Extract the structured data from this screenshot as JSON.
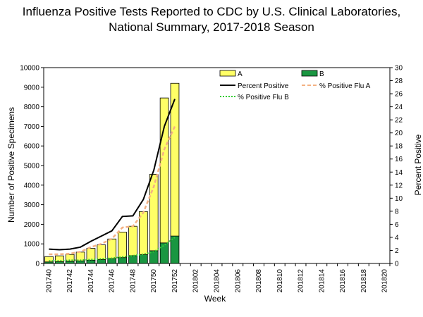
{
  "chart_data": {
    "type": "bar",
    "title_line1": "Influenza Positive Tests Reported to CDC by U.S. Clinical Laboratories,",
    "title_line2": "National Summary, 2017-2018 Season",
    "xlabel": "Week",
    "ylabel": "Number of Positive Specimens",
    "y2label": "Percent Positive",
    "ylim": [
      0,
      10000
    ],
    "y2lim": [
      0,
      30
    ],
    "yticks": [
      0,
      1000,
      2000,
      3000,
      4000,
      5000,
      6000,
      7000,
      8000,
      9000,
      10000
    ],
    "y2ticks": [
      0,
      2,
      4,
      6,
      8,
      10,
      12,
      14,
      16,
      18,
      20,
      22,
      24,
      26,
      28,
      30
    ],
    "weeks": [
      "201740",
      "201741",
      "201742",
      "201743",
      "201744",
      "201745",
      "201746",
      "201747",
      "201748",
      "201749",
      "201750",
      "201751",
      "201752",
      "201801",
      "201802",
      "201803",
      "201804",
      "201805",
      "201806",
      "201807",
      "201808",
      "201809",
      "201810",
      "201811",
      "201812",
      "201813",
      "201814",
      "201815",
      "201816",
      "201817",
      "201818",
      "201819",
      "201820"
    ],
    "x_tick_labels": [
      "201740",
      "201742",
      "201744",
      "201746",
      "201748",
      "201750",
      "201752",
      "201802",
      "201804",
      "201806",
      "201808",
      "201810",
      "201812",
      "201814",
      "201816",
      "201818",
      "201820"
    ],
    "series": [
      {
        "name": "A",
        "kind": "stacked-bar",
        "color": "#ffff66",
        "values": [
          270,
          300,
          350,
          450,
          600,
          750,
          1000,
          1300,
          1500,
          2200,
          3900,
          7400,
          7800
        ]
      },
      {
        "name": "B",
        "kind": "stacked-bar",
        "color": "#1a9641",
        "values": [
          80,
          90,
          110,
          130,
          170,
          200,
          250,
          300,
          400,
          450,
          650,
          1050,
          1400
        ]
      },
      {
        "name": "Percent Positive",
        "kind": "line",
        "color": "#000000",
        "values": [
          2.2,
          2.1,
          2.2,
          2.5,
          3.4,
          4.2,
          5.0,
          7.2,
          7.3,
          9.8,
          14.3,
          21.0,
          25.2
        ]
      },
      {
        "name": "% Positive Flu A",
        "kind": "line",
        "color": "#f4b183",
        "values": [
          1.4,
          1.4,
          1.5,
          1.8,
          2.5,
          3.0,
          3.8,
          5.5,
          5.7,
          7.8,
          11.8,
          17.5,
          21.0
        ]
      },
      {
        "name": "% Positive Flu B",
        "kind": "line",
        "color": "#33cc33",
        "values": [
          0.4,
          0.4,
          0.5,
          0.5,
          0.6,
          0.7,
          0.8,
          1.0,
          1.2,
          1.4,
          1.8,
          2.8,
          4.0
        ]
      }
    ],
    "legend": {
      "a": "A",
      "b": "B",
      "pct": "Percent Positive",
      "flua": "% Positive Flu A",
      "flub": "% Positive Flu B"
    }
  }
}
